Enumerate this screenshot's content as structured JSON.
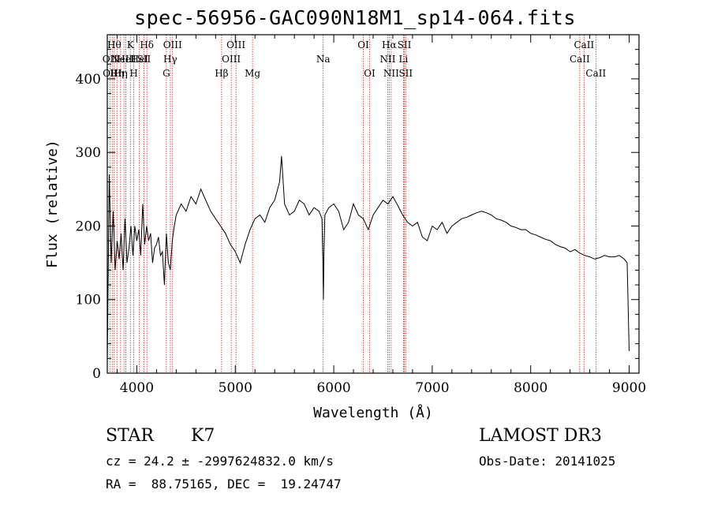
{
  "title": "spec-56956-GAC090N18M1_sp14-064.fits",
  "info": {
    "class": "STAR",
    "subclass": "K7",
    "survey": "LAMOST DR3",
    "cz": "cz = 24.2 ± -2997624832.0 km/s",
    "obs_date": "Obs-Date: 20141025",
    "radec": "RA =  88.75165, DEC =  19.24747"
  },
  "colors": {
    "line": "#000000",
    "marker": "#cc2222"
  },
  "chart_data": {
    "type": "line",
    "title": "spec-56956-GAC090N18M1_sp14-064.fits",
    "xlabel": "Wavelength (Å)",
    "ylabel": "Flux (relative)",
    "xlim": [
      3700,
      9100
    ],
    "ylim": [
      0,
      460
    ],
    "xticks": [
      4000,
      5000,
      6000,
      7000,
      8000,
      9000
    ],
    "yticks": [
      0,
      100,
      200,
      300,
      400
    ],
    "series": [
      {
        "name": "flux",
        "x": [
          3700,
          3720,
          3740,
          3760,
          3780,
          3800,
          3820,
          3840,
          3860,
          3880,
          3900,
          3920,
          3940,
          3960,
          3980,
          4000,
          4020,
          4040,
          4060,
          4080,
          4100,
          4120,
          4140,
          4160,
          4180,
          4200,
          4220,
          4240,
          4260,
          4280,
          4300,
          4320,
          4340,
          4360,
          4380,
          4400,
          4450,
          4500,
          4550,
          4600,
          4650,
          4700,
          4750,
          4800,
          4850,
          4900,
          4950,
          5000,
          5050,
          5100,
          5150,
          5200,
          5250,
          5300,
          5350,
          5400,
          5450,
          5470,
          5500,
          5550,
          5600,
          5650,
          5700,
          5750,
          5800,
          5850,
          5880,
          5890,
          5895,
          5900,
          5910,
          5950,
          6000,
          6050,
          6100,
          6150,
          6200,
          6250,
          6300,
          6350,
          6400,
          6450,
          6500,
          6550,
          6600,
          6650,
          6700,
          6750,
          6800,
          6850,
          6900,
          6950,
          7000,
          7050,
          7100,
          7150,
          7200,
          7250,
          7300,
          7350,
          7400,
          7450,
          7500,
          7550,
          7600,
          7650,
          7700,
          7750,
          7800,
          7850,
          7900,
          7950,
          8000,
          8050,
          8100,
          8150,
          8200,
          8250,
          8300,
          8350,
          8400,
          8450,
          8500,
          8550,
          8600,
          8650,
          8700,
          8750,
          8800,
          8850,
          8900,
          8950,
          8980,
          9000
        ],
        "y": [
          15,
          270,
          150,
          220,
          140,
          180,
          155,
          190,
          140,
          210,
          150,
          170,
          200,
          160,
          200,
          180,
          195,
          160,
          230,
          175,
          200,
          180,
          190,
          150,
          170,
          175,
          185,
          160,
          165,
          120,
          190,
          150,
          140,
          180,
          200,
          215,
          230,
          220,
          240,
          230,
          250,
          235,
          220,
          210,
          200,
          190,
          175,
          165,
          150,
          175,
          195,
          210,
          215,
          205,
          225,
          235,
          260,
          295,
          230,
          215,
          220,
          235,
          230,
          215,
          225,
          220,
          210,
          150,
          100,
          160,
          215,
          225,
          230,
          220,
          195,
          205,
          230,
          215,
          210,
          195,
          215,
          225,
          235,
          230,
          240,
          228,
          215,
          205,
          200,
          205,
          185,
          180,
          200,
          195,
          205,
          190,
          200,
          205,
          210,
          212,
          215,
          218,
          220,
          218,
          215,
          210,
          208,
          205,
          200,
          198,
          195,
          195,
          190,
          188,
          185,
          182,
          180,
          175,
          172,
          170,
          165,
          168,
          163,
          160,
          158,
          155,
          157,
          160,
          158,
          158,
          160,
          155,
          150,
          30
        ]
      }
    ],
    "lines": [
      {
        "wl": 3727,
        "label": "OII",
        "row": 1
      },
      {
        "wl": 3750,
        "label": "OIII",
        "row": 2
      },
      {
        "wl": 3771,
        "label": "Hθ",
        "row": 0
      },
      {
        "wl": 3798,
        "label": "Hη",
        "row": 2
      },
      {
        "wl": 3835,
        "label": "Hη",
        "row": 2
      },
      {
        "wl": 3869,
        "label": "NeIII",
        "row": 1
      },
      {
        "wl": 3889,
        "label": "HeI",
        "row": 1
      },
      {
        "wl": 3934,
        "label": "K",
        "row": 0
      },
      {
        "wl": 3969,
        "label": "H",
        "row": 2
      },
      {
        "wl": 4026,
        "label": "HeI",
        "row": 1
      },
      {
        "wl": 4072,
        "label": "SII",
        "row": 1
      },
      {
        "wl": 4102,
        "label": "Hδ",
        "row": 0
      },
      {
        "wl": 4300,
        "label": "G",
        "row": 2
      },
      {
        "wl": 4340,
        "label": "Hγ",
        "row": 1
      },
      {
        "wl": 4363,
        "label": "OIII",
        "row": 0
      },
      {
        "wl": 4861,
        "label": "Hβ",
        "row": 2
      },
      {
        "wl": 4959,
        "label": "OIII",
        "row": 1
      },
      {
        "wl": 5007,
        "label": "OIII",
        "row": 0
      },
      {
        "wl": 5175,
        "label": "Mg",
        "row": 2
      },
      {
        "wl": 5893,
        "label": "Na",
        "row": 1
      },
      {
        "wl": 6300,
        "label": "OI",
        "row": 0
      },
      {
        "wl": 6364,
        "label": "OI",
        "row": 2
      },
      {
        "wl": 6548,
        "label": "NII",
        "row": 1
      },
      {
        "wl": 6563,
        "label": "Hα",
        "row": 0
      },
      {
        "wl": 6583,
        "label": "NII",
        "row": 2
      },
      {
        "wl": 6708,
        "label": "Li",
        "row": 1
      },
      {
        "wl": 6717,
        "label": "SII",
        "row": 0
      },
      {
        "wl": 6731,
        "label": "SII",
        "row": 2
      },
      {
        "wl": 8498,
        "label": "CaII",
        "row": 1
      },
      {
        "wl": 8542,
        "label": "CaII",
        "row": 0
      },
      {
        "wl": 8662,
        "label": "CaII",
        "row": 2
      }
    ]
  }
}
